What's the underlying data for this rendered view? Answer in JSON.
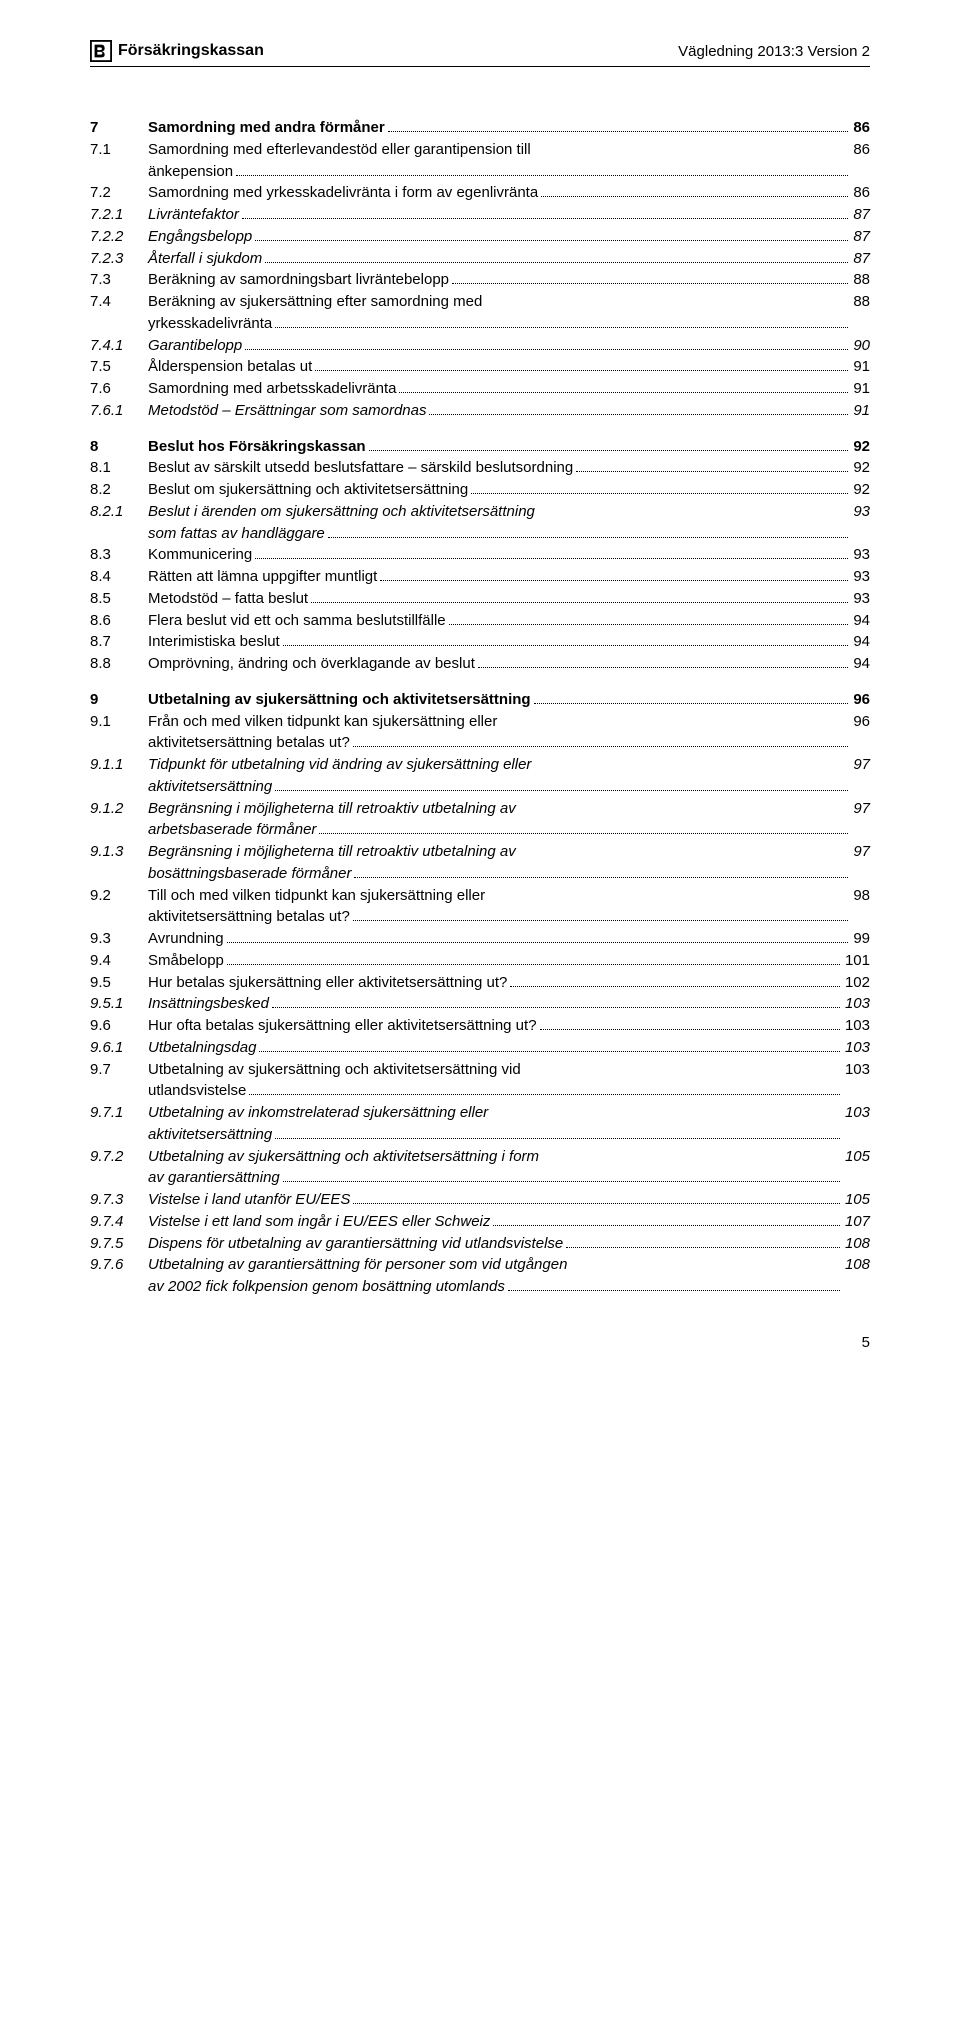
{
  "header": {
    "org": "Försäkringskassan",
    "doc": "Vägledning 2013:3 Version 2"
  },
  "page_number": "5",
  "toc": [
    {
      "gap": true
    },
    {
      "num": "7",
      "title": "Samordning med andra förmåner",
      "page": "86",
      "bold": true
    },
    {
      "num": "7.1",
      "title": "Samordning med efterlevandestöd eller garantipension till änkepension",
      "page": "86",
      "multi": true
    },
    {
      "num": "7.2",
      "title": "Samordning med yrkesskadelivränta i form av egenlivränta",
      "page": "86"
    },
    {
      "num": "7.2.1",
      "title": "Livräntefaktor",
      "page": "87",
      "italic": true
    },
    {
      "num": "7.2.2",
      "title": "Engångsbelopp",
      "page": "87",
      "italic": true
    },
    {
      "num": "7.2.3",
      "title": "Återfall i sjukdom",
      "page": "87",
      "italic": true
    },
    {
      "num": "7.3",
      "title": "Beräkning av samordningsbart livräntebelopp",
      "page": "88"
    },
    {
      "num": "7.4",
      "title": "Beräkning av sjukersättning efter samordning med yrkesskadelivränta",
      "page": "88",
      "multi": true
    },
    {
      "num": "7.4.1",
      "title": "Garantibelopp",
      "page": "90",
      "italic": true
    },
    {
      "num": "7.5",
      "title": "Ålderspension betalas ut",
      "page": "91"
    },
    {
      "num": "7.6",
      "title": "Samordning med arbetsskadelivränta",
      "page": "91"
    },
    {
      "num": "7.6.1",
      "title": "Metodstöd – Ersättningar som samordnas",
      "page": "91",
      "italic": true
    },
    {
      "gap": true
    },
    {
      "num": "8",
      "title": "Beslut hos Försäkringskassan",
      "page": "92",
      "bold": true
    },
    {
      "num": "8.1",
      "title": "Beslut av särskilt utsedd beslutsfattare – särskild beslutsordning",
      "page": "92"
    },
    {
      "num": "8.2",
      "title": "Beslut om sjukersättning och aktivitetsersättning",
      "page": "92"
    },
    {
      "num": "8.2.1",
      "title": "Beslut i ärenden om sjukersättning och aktivitetsersättning som fattas av handläggare",
      "page": "93",
      "italic": true,
      "multi": true
    },
    {
      "num": "8.3",
      "title": "Kommunicering",
      "page": "93"
    },
    {
      "num": "8.4",
      "title": "Rätten att lämna uppgifter muntligt",
      "page": "93"
    },
    {
      "num": "8.5",
      "title": "Metodstöd – fatta beslut",
      "page": "93"
    },
    {
      "num": "8.6",
      "title": "Flera beslut vid ett och samma beslutstillfälle",
      "page": "94"
    },
    {
      "num": "8.7",
      "title": "Interimistiska beslut",
      "page": "94"
    },
    {
      "num": "8.8",
      "title": "Omprövning, ändring och överklagande av beslut",
      "page": "94"
    },
    {
      "gap": true
    },
    {
      "num": "9",
      "title": "Utbetalning av sjukersättning och aktivitetsersättning",
      "page": "96",
      "bold": true
    },
    {
      "num": "9.1",
      "title": "Från och med vilken tidpunkt kan sjukersättning eller aktivitetsersättning betalas ut?",
      "page": "96",
      "multi": true
    },
    {
      "num": "9.1.1",
      "title": "Tidpunkt för utbetalning vid ändring av sjukersättning eller aktivitetsersättning",
      "page": "97",
      "italic": true,
      "multi": true
    },
    {
      "num": "9.1.2",
      "title": "Begränsning i möjligheterna till retroaktiv utbetalning av arbetsbaserade förmåner",
      "page": "97",
      "italic": true,
      "multi": true
    },
    {
      "num": "9.1.3",
      "title": "Begränsning i möjligheterna till retroaktiv utbetalning av bosättningsbaserade förmåner",
      "page": "97",
      "italic": true,
      "multi": true
    },
    {
      "num": "9.2",
      "title": "Till och med vilken tidpunkt kan sjukersättning eller aktivitetsersättning betalas ut?",
      "page": "98",
      "multi": true
    },
    {
      "num": "9.3",
      "title": "Avrundning",
      "page": "99"
    },
    {
      "num": "9.4",
      "title": "Småbelopp",
      "page": "101"
    },
    {
      "num": "9.5",
      "title": "Hur betalas sjukersättning eller aktivitetsersättning ut?",
      "page": "102"
    },
    {
      "num": "9.5.1",
      "title": "Insättningsbesked",
      "page": "103",
      "italic": true
    },
    {
      "num": "9.6",
      "title": "Hur ofta betalas sjukersättning eller aktivitetsersättning ut?",
      "page": "103"
    },
    {
      "num": "9.6.1",
      "title": "Utbetalningsdag",
      "page": "103",
      "italic": true
    },
    {
      "num": "9.7",
      "title": "Utbetalning av sjukersättning och aktivitetsersättning vid utlandsvistelse",
      "page": "103",
      "multi": true
    },
    {
      "num": "9.7.1",
      "title": "Utbetalning av inkomstrelaterad sjukersättning eller aktivitetsersättning",
      "page": "103",
      "italic": true,
      "multi": true
    },
    {
      "num": "9.7.2",
      "title": "Utbetalning av sjukersättning och aktivitetsersättning i form av garantiersättning",
      "page": "105",
      "italic": true,
      "multi": true
    },
    {
      "num": "9.7.3",
      "title": "Vistelse i land utanför EU/EES",
      "page": "105",
      "italic": true
    },
    {
      "num": "9.7.4",
      "title": "Vistelse i ett land som ingår i EU/EES eller Schweiz",
      "page": "107",
      "italic": true
    },
    {
      "num": "9.7.5",
      "title": "Dispens för utbetalning av garantiersättning vid utlandsvistelse",
      "page": "108",
      "italic": true
    },
    {
      "num": "9.7.6",
      "title": "Utbetalning av garantiersättning för personer som vid utgången av 2002 fick folkpension genom bosättning utomlands",
      "page": "108",
      "italic": true,
      "multi": true
    }
  ]
}
